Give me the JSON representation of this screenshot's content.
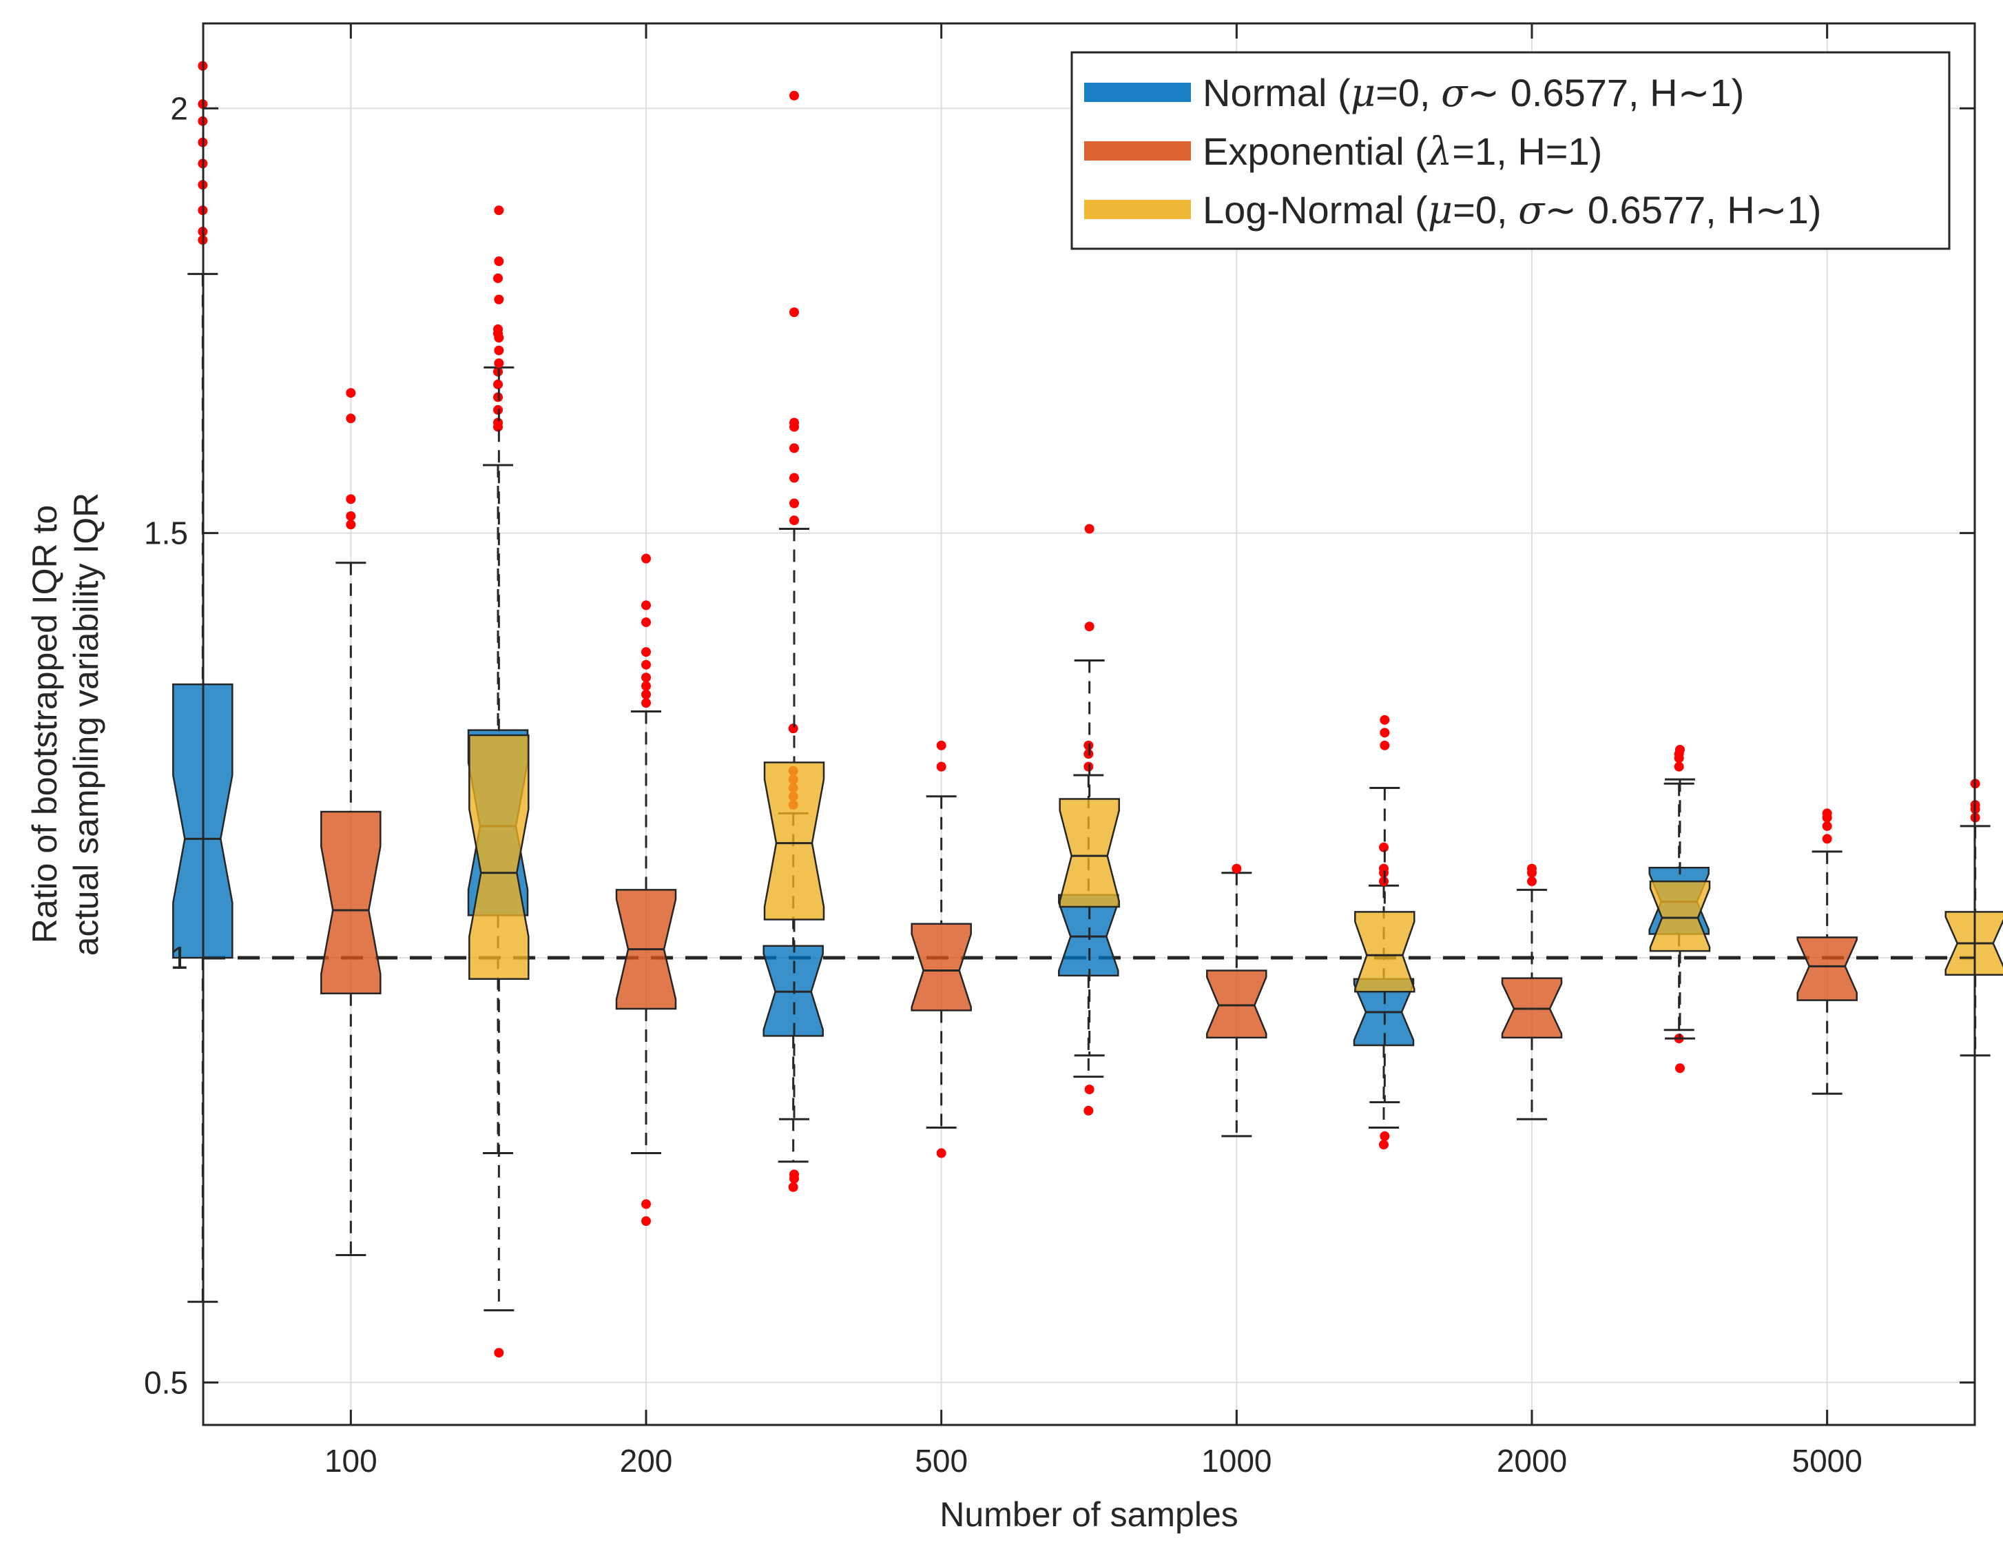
{
  "chart_data": {
    "type": "boxplot",
    "notched": true,
    "title": "",
    "xlabel": "Number of samples",
    "ylabel": [
      "Ratio of bootstrapped IQR to",
      "actual sampling variability IQR"
    ],
    "categories": [
      "100",
      "200",
      "500",
      "1000",
      "2000",
      "5000"
    ],
    "ylim": [
      0.45,
      2.1
    ],
    "yticks": [
      0.5,
      1,
      1.5,
      2
    ],
    "ytick_labels": [
      "0.5",
      "1",
      "1.5",
      "2"
    ],
    "grid": true,
    "legend_position": "top-right",
    "reference_line": {
      "y": 1,
      "style": "dashed",
      "color": "#262626"
    },
    "colors": {
      "normal": "#0072bd",
      "exponential": "#d95319",
      "lognormal": "#edb120",
      "outlier": "#ff0000"
    },
    "series": [
      {
        "key": "normal",
        "legend": {
          "prefix": "Normal (",
          "parts": [
            [
              "μ",
              true
            ],
            [
              "=0, ",
              false
            ],
            [
              "σ",
              true
            ],
            [
              "∼ 0.6577, H∼1)",
              false
            ]
          ]
        },
        "boxes": [
          {
            "whisker_low": 0.595,
            "q1": 1.0,
            "median": 1.14,
            "q3": 1.322,
            "whisker_high": 1.805,
            "outliers": [
              1.845,
              1.855,
              1.88,
              1.91,
              1.935,
              1.96,
              1.985,
              2.005,
              2.05
            ]
          },
          {
            "whisker_low": 0.77,
            "q1": 1.05,
            "median": 1.155,
            "q3": 1.268,
            "whisker_high": 1.58,
            "outliers": [
              1.625,
              1.63,
              1.645,
              1.66,
              1.675,
              1.69,
              1.735,
              1.74,
              1.8
            ]
          },
          {
            "whisker_low": 0.76,
            "q1": 0.908,
            "median": 0.96,
            "q3": 1.014,
            "whisker_high": 1.17,
            "outliers": [
              0.73,
              1.18,
              1.19,
              1.2,
              1.21,
              1.22,
              1.27
            ]
          },
          {
            "whisker_low": 0.86,
            "q1": 0.979,
            "median": 1.025,
            "q3": 1.074,
            "whisker_high": 1.215,
            "outliers": [
              0.82,
              1.225,
              1.24,
              1.25
            ]
          },
          {
            "whisker_low": 0.8,
            "q1": 0.897,
            "median": 0.936,
            "q3": 0.975,
            "whisker_high": 1.085,
            "outliers": [
              0.78,
              1.09,
              1.1,
              1.105,
              1.13
            ]
          },
          {
            "whisker_low": 0.915,
            "q1": 1.028,
            "median": 1.066,
            "q3": 1.106,
            "whisker_high": 1.205,
            "outliers": [
              0.905,
              1.225,
              1.235,
              1.24
            ]
          }
        ]
      },
      {
        "key": "exponential",
        "legend": {
          "prefix": "Exponential (",
          "parts": [
            [
              "λ",
              true
            ],
            [
              "=1, H=1)",
              false
            ]
          ]
        },
        "boxes": [
          {
            "whisker_low": 0.65,
            "q1": 0.958,
            "median": 1.056,
            "q3": 1.172,
            "whisker_high": 1.465,
            "outliers": [
              1.51,
              1.52,
              1.54,
              1.635,
              1.665
            ]
          },
          {
            "whisker_low": 0.77,
            "q1": 0.94,
            "median": 1.01,
            "q3": 1.08,
            "whisker_high": 1.29,
            "outliers": [
              0.69,
              0.71,
              1.3,
              1.31,
              1.32,
              1.33,
              1.345,
              1.36,
              1.395,
              1.415,
              1.47
            ]
          },
          {
            "whisker_low": 0.8,
            "q1": 0.938,
            "median": 0.985,
            "q3": 1.04,
            "whisker_high": 1.19,
            "outliers": [
              0.77,
              1.225,
              1.25
            ]
          },
          {
            "whisker_low": 0.79,
            "q1": 0.906,
            "median": 0.944,
            "q3": 0.985,
            "whisker_high": 1.1,
            "outliers": [
              1.105
            ]
          },
          {
            "whisker_low": 0.81,
            "q1": 0.906,
            "median": 0.94,
            "q3": 0.976,
            "whisker_high": 1.08,
            "outliers": [
              1.09,
              1.1,
              1.105
            ]
          },
          {
            "whisker_low": 0.84,
            "q1": 0.95,
            "median": 0.99,
            "q3": 1.024,
            "whisker_high": 1.125,
            "outliers": [
              1.14,
              1.155,
              1.165,
              1.17
            ]
          }
        ]
      },
      {
        "key": "lognormal",
        "legend": {
          "prefix": "Log-Normal (",
          "parts": [
            [
              "μ",
              true
            ],
            [
              "=0, ",
              false
            ],
            [
              "σ",
              true
            ],
            [
              "∼ 0.6577, H∼1)",
              false
            ]
          ]
        },
        "boxes": [
          {
            "whisker_low": 0.585,
            "q1": 0.975,
            "median": 1.1,
            "q3": 1.262,
            "whisker_high": 1.695,
            "outliers": [
              0.535,
              1.7,
              1.715,
              1.73,
              1.775,
              1.82,
              1.88
            ]
          },
          {
            "whisker_low": 0.81,
            "q1": 1.045,
            "median": 1.135,
            "q3": 1.23,
            "whisker_high": 1.505,
            "outliers": [
              0.74,
              0.745,
              1.515,
              1.535,
              1.565,
              1.6,
              1.625,
              1.63,
              1.76,
              2.015
            ]
          },
          {
            "whisker_low": 0.885,
            "q1": 1.06,
            "median": 1.12,
            "q3": 1.187,
            "whisker_high": 1.35,
            "outliers": [
              0.845,
              1.39,
              1.505
            ]
          },
          {
            "whisker_low": 0.83,
            "q1": 0.96,
            "median": 1.003,
            "q3": 1.054,
            "whisker_high": 1.2,
            "outliers": [
              0.79,
              1.25,
              1.265,
              1.28
            ]
          },
          {
            "whisker_low": 0.905,
            "q1": 1.008,
            "median": 1.047,
            "q3": 1.09,
            "whisker_high": 1.21,
            "outliers": [
              0.87,
              1.245
            ]
          },
          {
            "whisker_low": 0.885,
            "q1": 0.98,
            "median": 1.017,
            "q3": 1.054,
            "whisker_high": 1.155,
            "outliers": [
              1.165,
              1.175,
              1.18,
              1.205
            ]
          }
        ]
      }
    ]
  }
}
